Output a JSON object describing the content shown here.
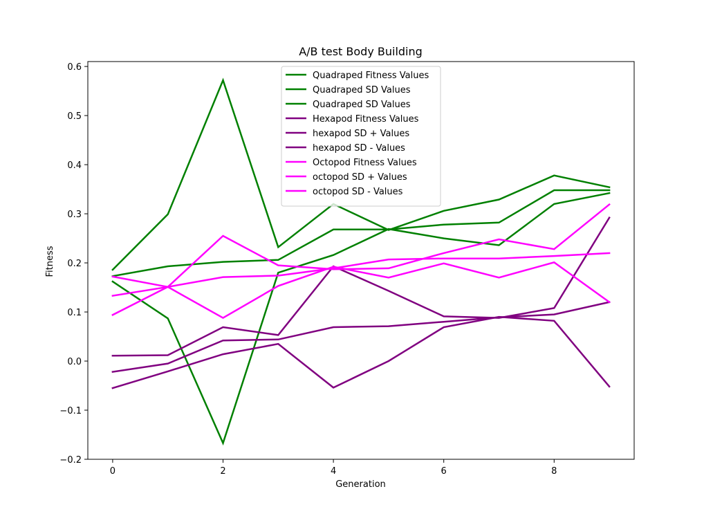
{
  "chart_data": {
    "type": "line",
    "title": "A/B test Body Building",
    "xlabel": "Generation",
    "ylabel": "Fitness",
    "xlim": [
      -0.45,
      9.45
    ],
    "ylim": [
      -0.2,
      0.61
    ],
    "xticks": [
      0,
      2,
      4,
      6,
      8
    ],
    "xtick_labels": [
      "0",
      "2",
      "4",
      "6",
      "8"
    ],
    "yticks": [
      -0.2,
      -0.1,
      0.0,
      0.1,
      0.2,
      0.3,
      0.4,
      0.5,
      0.6
    ],
    "ytick_labels": [
      "−0.2",
      "−0.1",
      "0.0",
      "0.1",
      "0.2",
      "0.3",
      "0.4",
      "0.5",
      "0.6"
    ],
    "grid": false,
    "legend_position": "top-center",
    "x": [
      0,
      1,
      2,
      3,
      4,
      5,
      6,
      7,
      8,
      9
    ],
    "series": [
      {
        "name": "Quadraped Fitness Values",
        "color": "#008000",
        "values": [
          0.173,
          0.193,
          0.202,
          0.206,
          0.268,
          0.268,
          0.278,
          0.282,
          0.348,
          0.348
        ]
      },
      {
        "name": "Quadraped SD Values",
        "color": "#008000",
        "values": [
          0.186,
          0.299,
          0.572,
          0.232,
          0.32,
          0.267,
          0.306,
          0.329,
          0.378,
          0.354
        ]
      },
      {
        "name": "Quadraped SD Values",
        "color": "#008000",
        "values": [
          0.162,
          0.087,
          -0.167,
          0.18,
          0.216,
          0.269,
          0.25,
          0.236,
          0.32,
          0.342
        ]
      },
      {
        "name": "Hexapod Fitness Values",
        "color": "#800080",
        "values": [
          -0.022,
          -0.005,
          0.042,
          0.044,
          0.069,
          0.071,
          0.08,
          0.089,
          0.095,
          0.12
        ]
      },
      {
        "name": "hexapod SD + Values",
        "color": "#800080",
        "values": [
          0.011,
          0.012,
          0.069,
          0.053,
          0.193,
          0.143,
          0.091,
          0.088,
          0.108,
          0.292
        ]
      },
      {
        "name": "hexapod SD - Values",
        "color": "#800080",
        "values": [
          -0.055,
          -0.021,
          0.014,
          0.035,
          -0.054,
          0.0,
          0.069,
          0.09,
          0.082,
          -0.052
        ]
      },
      {
        "name": "Octopod Fitness Values",
        "color": "#ff00ff",
        "values": [
          0.133,
          0.151,
          0.171,
          0.174,
          0.189,
          0.207,
          0.209,
          0.209,
          0.214,
          0.22
        ]
      },
      {
        "name": "octopod SD + Values",
        "color": "#ff00ff",
        "values": [
          0.172,
          0.151,
          0.255,
          0.195,
          0.187,
          0.189,
          0.22,
          0.248,
          0.228,
          0.319
        ]
      },
      {
        "name": "octopod SD - Values",
        "color": "#ff00ff",
        "values": [
          0.094,
          0.151,
          0.088,
          0.153,
          0.192,
          0.17,
          0.199,
          0.17,
          0.201,
          0.12
        ]
      }
    ]
  }
}
